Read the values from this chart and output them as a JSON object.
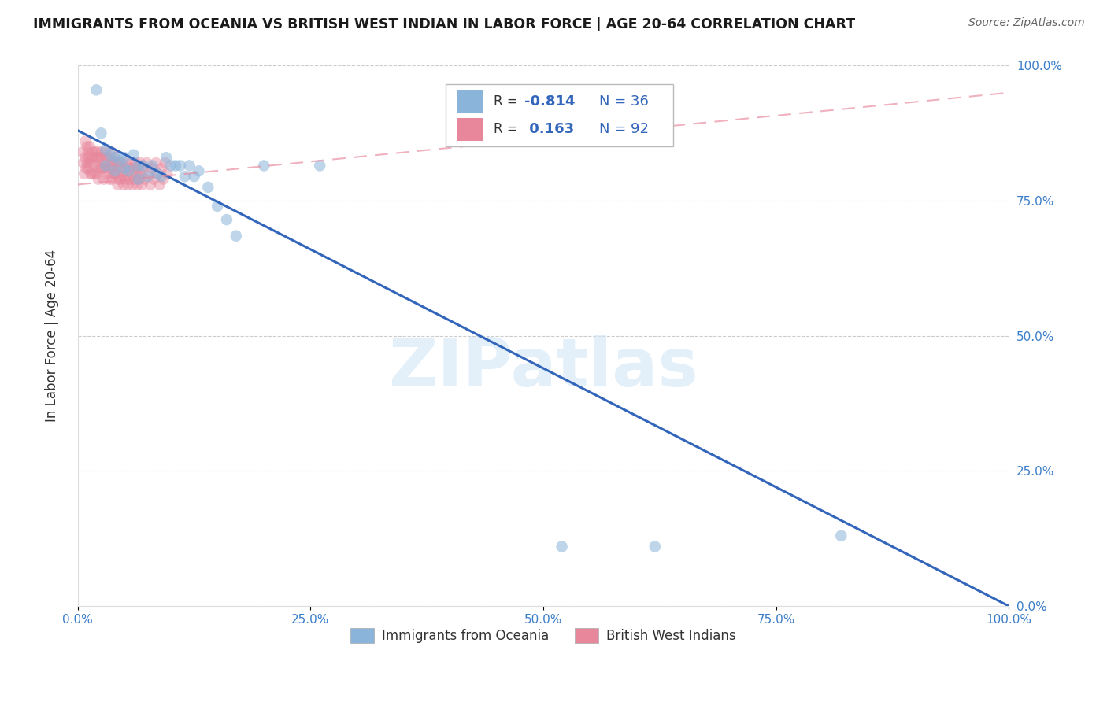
{
  "title": "IMMIGRANTS FROM OCEANIA VS BRITISH WEST INDIAN IN LABOR FORCE | AGE 20-64 CORRELATION CHART",
  "source": "Source: ZipAtlas.com",
  "ylabel": "In Labor Force | Age 20-64",
  "xlim": [
    0.0,
    1.0
  ],
  "ylim": [
    0.0,
    1.0
  ],
  "xticks": [
    0.0,
    0.25,
    0.5,
    0.75,
    1.0
  ],
  "yticks": [
    0.0,
    0.25,
    0.5,
    0.75,
    1.0
  ],
  "xtick_labels": [
    "0.0%",
    "25.0%",
    "50.0%",
    "75.0%",
    "100.0%"
  ],
  "ytick_labels": [
    "0.0%",
    "25.0%",
    "50.0%",
    "75.0%",
    "100.0%"
  ],
  "blue_R": -0.814,
  "blue_N": 36,
  "pink_R": 0.163,
  "pink_N": 92,
  "blue_color": "#8ab4d9",
  "pink_color": "#e8879c",
  "blue_line_color": "#3366bb",
  "pink_line_color": "#e8879c",
  "blue_line_x": [
    0.0,
    1.0
  ],
  "blue_line_y": [
    0.88,
    0.0
  ],
  "pink_line_x": [
    0.0,
    1.0
  ],
  "pink_line_y": [
    0.78,
    0.95
  ],
  "watermark": "ZIPatlas",
  "legend_label_blue": "Immigrants from Oceania",
  "legend_label_pink": "British West Indians",
  "blue_scatter_x": [
    0.02,
    0.025,
    0.03,
    0.03,
    0.035,
    0.04,
    0.04,
    0.045,
    0.05,
    0.05,
    0.055,
    0.06,
    0.065,
    0.065,
    0.07,
    0.075,
    0.08,
    0.085,
    0.09,
    0.095,
    0.1,
    0.105,
    0.11,
    0.115,
    0.12,
    0.125,
    0.13,
    0.14,
    0.15,
    0.16,
    0.17,
    0.2,
    0.26,
    0.52,
    0.62,
    0.82
  ],
  "blue_scatter_y": [
    0.955,
    0.875,
    0.845,
    0.815,
    0.835,
    0.83,
    0.805,
    0.825,
    0.83,
    0.81,
    0.805,
    0.835,
    0.815,
    0.79,
    0.815,
    0.795,
    0.815,
    0.8,
    0.795,
    0.83,
    0.815,
    0.815,
    0.815,
    0.795,
    0.815,
    0.795,
    0.805,
    0.775,
    0.74,
    0.715,
    0.685,
    0.815,
    0.815,
    0.11,
    0.11,
    0.13
  ],
  "pink_scatter_x": [
    0.005,
    0.006,
    0.007,
    0.008,
    0.008,
    0.009,
    0.01,
    0.01,
    0.011,
    0.011,
    0.012,
    0.013,
    0.013,
    0.014,
    0.015,
    0.015,
    0.016,
    0.017,
    0.018,
    0.019,
    0.02,
    0.02,
    0.021,
    0.022,
    0.022,
    0.023,
    0.024,
    0.025,
    0.025,
    0.026,
    0.027,
    0.028,
    0.029,
    0.03,
    0.03,
    0.031,
    0.032,
    0.033,
    0.034,
    0.034,
    0.035,
    0.036,
    0.037,
    0.037,
    0.038,
    0.039,
    0.04,
    0.04,
    0.041,
    0.042,
    0.043,
    0.044,
    0.044,
    0.045,
    0.046,
    0.047,
    0.048,
    0.049,
    0.05,
    0.051,
    0.052,
    0.053,
    0.054,
    0.055,
    0.056,
    0.057,
    0.058,
    0.059,
    0.06,
    0.061,
    0.062,
    0.063,
    0.064,
    0.065,
    0.066,
    0.067,
    0.068,
    0.069,
    0.07,
    0.072,
    0.074,
    0.076,
    0.078,
    0.08,
    0.082,
    0.084,
    0.086,
    0.088,
    0.09,
    0.092,
    0.094,
    0.096
  ],
  "pink_scatter_y": [
    0.84,
    0.82,
    0.8,
    0.86,
    0.83,
    0.81,
    0.85,
    0.82,
    0.84,
    0.81,
    0.83,
    0.85,
    0.82,
    0.8,
    0.83,
    0.8,
    0.84,
    0.82,
    0.8,
    0.84,
    0.83,
    0.8,
    0.84,
    0.82,
    0.79,
    0.83,
    0.81,
    0.84,
    0.81,
    0.83,
    0.81,
    0.79,
    0.82,
    0.84,
    0.81,
    0.83,
    0.8,
    0.83,
    0.81,
    0.79,
    0.82,
    0.84,
    0.81,
    0.79,
    0.82,
    0.8,
    0.83,
    0.8,
    0.82,
    0.8,
    0.78,
    0.81,
    0.79,
    0.82,
    0.79,
    0.82,
    0.8,
    0.78,
    0.81,
    0.79,
    0.82,
    0.8,
    0.78,
    0.81,
    0.79,
    0.82,
    0.8,
    0.78,
    0.81,
    0.79,
    0.82,
    0.8,
    0.78,
    0.81,
    0.79,
    0.82,
    0.8,
    0.78,
    0.81,
    0.79,
    0.82,
    0.8,
    0.78,
    0.81,
    0.79,
    0.82,
    0.8,
    0.78,
    0.81,
    0.79,
    0.82,
    0.8
  ]
}
